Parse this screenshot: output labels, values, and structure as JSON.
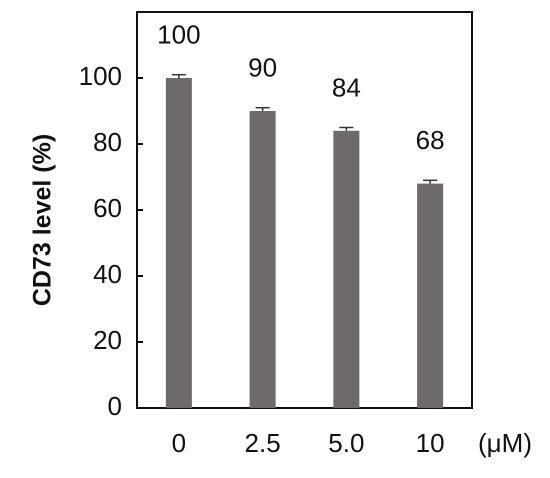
{
  "chart_data": {
    "type": "bar",
    "y_label": "CD73 level (%)",
    "x_label": "(μM)",
    "categories": [
      "0",
      "2.5",
      "5.0",
      "10"
    ],
    "values": [
      100,
      90,
      84,
      68
    ],
    "errors": [
      1,
      1,
      1,
      1
    ],
    "color": "#6f6a6a",
    "ylim": [
      0,
      120
    ],
    "yticks": [
      0,
      20,
      40,
      60,
      80,
      100
    ],
    "grid": false
  }
}
